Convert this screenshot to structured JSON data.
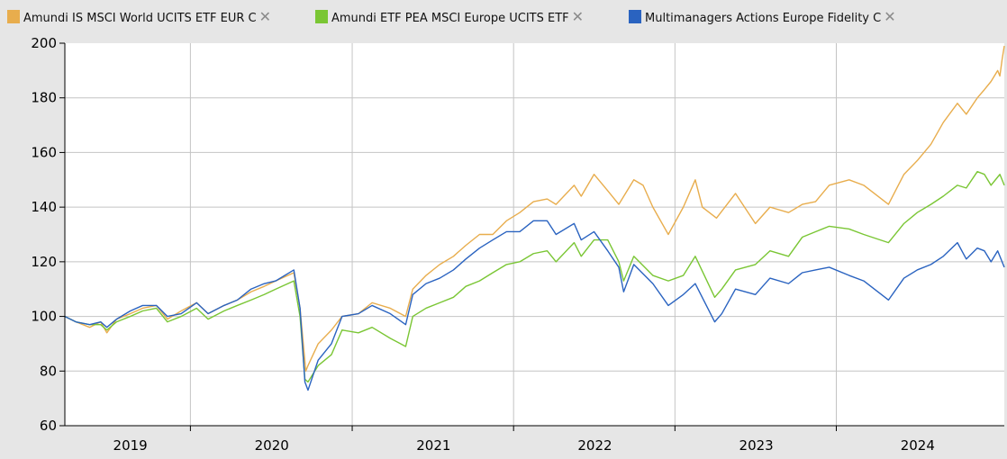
{
  "colors": {
    "background": "#e6e6e6",
    "plot_background": "#ffffff",
    "grid": "#c4c4c4",
    "series_world": "#e8ad4d",
    "series_europe_etf": "#7ac634",
    "series_fidelity": "#2a63c0"
  },
  "legend": {
    "items": [
      {
        "label": "Amundi IS MSCI World UCITS ETF EUR C",
        "color": "#e8ad4d",
        "remove_icon": "close-icon"
      },
      {
        "label": "Amundi ETF PEA MSCI Europe UCITS ETF",
        "color": "#7ac634",
        "remove_icon": "close-icon"
      },
      {
        "label": "Multimanagers Actions Europe Fidelity C",
        "color": "#2a63c0",
        "remove_icon": "close-icon"
      }
    ],
    "remove_glyph": "✕"
  },
  "chart_data": {
    "type": "line",
    "title": "",
    "xlabel": "",
    "ylabel": "",
    "xlim": [
      "2018-09-20",
      "2024-07-15"
    ],
    "ylim": [
      60,
      200
    ],
    "yticks": [
      60,
      80,
      100,
      120,
      140,
      160,
      180,
      200
    ],
    "xtick_positions": [
      "2019-07-01",
      "2020-07-01",
      "2021-07-01",
      "2022-07-01",
      "2023-07-01"
    ],
    "year_labels": [
      {
        "label": "2019",
        "x": "2019-02-15"
      },
      {
        "label": "2020",
        "x": "2020-01-01"
      },
      {
        "label": "2021",
        "x": "2021-01-01"
      },
      {
        "label": "2022",
        "x": "2022-01-01"
      },
      {
        "label": "2023",
        "x": "2023-01-01"
      },
      {
        "label": "2024",
        "x": "2024-01-01"
      }
    ],
    "grid": true,
    "legend_position": "top",
    "series": [
      {
        "name": "Amundi IS MSCI World UCITS ETF EUR C",
        "color": "#e8ad4d",
        "points": [
          [
            "2018-09-20",
            100
          ],
          [
            "2018-10-15",
            98
          ],
          [
            "2018-11-15",
            96
          ],
          [
            "2018-12-10",
            98
          ],
          [
            "2018-12-24",
            94
          ],
          [
            "2019-01-15",
            99
          ],
          [
            "2019-02-15",
            101
          ],
          [
            "2019-03-15",
            103
          ],
          [
            "2019-04-15",
            104
          ],
          [
            "2019-05-10",
            99
          ],
          [
            "2019-06-10",
            102
          ],
          [
            "2019-07-15",
            105
          ],
          [
            "2019-08-10",
            101
          ],
          [
            "2019-09-15",
            104
          ],
          [
            "2019-10-15",
            106
          ],
          [
            "2019-11-15",
            109
          ],
          [
            "2019-12-15",
            111
          ],
          [
            "2020-01-10",
            113
          ],
          [
            "2020-02-20",
            116
          ],
          [
            "2020-03-05",
            103
          ],
          [
            "2020-03-18",
            80
          ],
          [
            "2020-03-23",
            82
          ],
          [
            "2020-04-15",
            90
          ],
          [
            "2020-05-15",
            95
          ],
          [
            "2020-06-08",
            100
          ],
          [
            "2020-07-15",
            101
          ],
          [
            "2020-08-15",
            105
          ],
          [
            "2020-09-25",
            103
          ],
          [
            "2020-10-30",
            100
          ],
          [
            "2020-11-15",
            110
          ],
          [
            "2020-12-15",
            115
          ],
          [
            "2021-01-15",
            119
          ],
          [
            "2021-02-15",
            122
          ],
          [
            "2021-03-15",
            126
          ],
          [
            "2021-04-15",
            130
          ],
          [
            "2021-05-15",
            130
          ],
          [
            "2021-06-15",
            135
          ],
          [
            "2021-07-15",
            138
          ],
          [
            "2021-08-15",
            142
          ],
          [
            "2021-09-15",
            143
          ],
          [
            "2021-10-05",
            141
          ],
          [
            "2021-11-15",
            148
          ],
          [
            "2021-12-01",
            144
          ],
          [
            "2021-12-30",
            152
          ],
          [
            "2022-01-30",
            146
          ],
          [
            "2022-02-24",
            141
          ],
          [
            "2022-03-30",
            150
          ],
          [
            "2022-04-20",
            148
          ],
          [
            "2022-05-12",
            140
          ],
          [
            "2022-06-16",
            130
          ],
          [
            "2022-07-20",
            140
          ],
          [
            "2022-08-16",
            150
          ],
          [
            "2022-09-01",
            140
          ],
          [
            "2022-10-03",
            136
          ],
          [
            "2022-11-15",
            145
          ],
          [
            "2022-12-30",
            134
          ],
          [
            "2023-02-01",
            140
          ],
          [
            "2023-03-15",
            138
          ],
          [
            "2023-04-15",
            141
          ],
          [
            "2023-05-15",
            142
          ],
          [
            "2023-06-15",
            148
          ],
          [
            "2023-07-30",
            150
          ],
          [
            "2023-09-01",
            148
          ],
          [
            "2023-10-27",
            141
          ],
          [
            "2023-12-01",
            152
          ],
          [
            "2023-12-31",
            157
          ],
          [
            "2024-01-31",
            163
          ],
          [
            "2024-02-28",
            171
          ],
          [
            "2024-03-31",
            178
          ],
          [
            "2024-04-20",
            174
          ],
          [
            "2024-05-15",
            180
          ],
          [
            "2024-05-31",
            183
          ],
          [
            "2024-06-15",
            186
          ],
          [
            "2024-06-30",
            190
          ],
          [
            "2024-07-05",
            188
          ],
          [
            "2024-07-10",
            194
          ],
          [
            "2024-07-15",
            199
          ]
        ]
      },
      {
        "name": "Amundi ETF PEA MSCI Europe UCITS ETF",
        "color": "#7ac634",
        "points": [
          [
            "2018-09-20",
            100
          ],
          [
            "2018-10-15",
            98
          ],
          [
            "2018-11-15",
            97
          ],
          [
            "2018-12-10",
            97
          ],
          [
            "2018-12-24",
            95
          ],
          [
            "2019-01-15",
            98
          ],
          [
            "2019-02-15",
            100
          ],
          [
            "2019-03-15",
            102
          ],
          [
            "2019-04-15",
            103
          ],
          [
            "2019-05-10",
            98
          ],
          [
            "2019-06-10",
            100
          ],
          [
            "2019-07-15",
            103
          ],
          [
            "2019-08-10",
            99
          ],
          [
            "2019-09-15",
            102
          ],
          [
            "2019-10-15",
            104
          ],
          [
            "2019-11-15",
            106
          ],
          [
            "2019-12-15",
            108
          ],
          [
            "2020-01-10",
            110
          ],
          [
            "2020-02-20",
            113
          ],
          [
            "2020-03-05",
            100
          ],
          [
            "2020-03-16",
            77
          ],
          [
            "2020-03-23",
            76
          ],
          [
            "2020-04-15",
            82
          ],
          [
            "2020-05-15",
            86
          ],
          [
            "2020-06-08",
            95
          ],
          [
            "2020-07-15",
            94
          ],
          [
            "2020-08-15",
            96
          ],
          [
            "2020-09-25",
            92
          ],
          [
            "2020-10-30",
            89
          ],
          [
            "2020-11-15",
            100
          ],
          [
            "2020-12-15",
            103
          ],
          [
            "2021-01-15",
            105
          ],
          [
            "2021-02-15",
            107
          ],
          [
            "2021-03-15",
            111
          ],
          [
            "2021-04-15",
            113
          ],
          [
            "2021-05-15",
            116
          ],
          [
            "2021-06-15",
            119
          ],
          [
            "2021-07-15",
            120
          ],
          [
            "2021-08-15",
            123
          ],
          [
            "2021-09-15",
            124
          ],
          [
            "2021-10-05",
            120
          ],
          [
            "2021-11-15",
            127
          ],
          [
            "2021-12-01",
            122
          ],
          [
            "2021-12-30",
            128
          ],
          [
            "2022-01-30",
            128
          ],
          [
            "2022-02-24",
            120
          ],
          [
            "2022-03-07",
            113
          ],
          [
            "2022-03-30",
            122
          ],
          [
            "2022-05-12",
            115
          ],
          [
            "2022-06-16",
            113
          ],
          [
            "2022-07-20",
            115
          ],
          [
            "2022-08-16",
            122
          ],
          [
            "2022-09-29",
            107
          ],
          [
            "2022-10-15",
            110
          ],
          [
            "2022-11-15",
            117
          ],
          [
            "2022-12-30",
            119
          ],
          [
            "2023-02-01",
            124
          ],
          [
            "2023-03-15",
            122
          ],
          [
            "2023-04-15",
            129
          ],
          [
            "2023-05-15",
            131
          ],
          [
            "2023-06-15",
            133
          ],
          [
            "2023-07-30",
            132
          ],
          [
            "2023-09-01",
            130
          ],
          [
            "2023-10-27",
            127
          ],
          [
            "2023-12-01",
            134
          ],
          [
            "2023-12-31",
            138
          ],
          [
            "2024-01-31",
            141
          ],
          [
            "2024-02-28",
            144
          ],
          [
            "2024-03-31",
            148
          ],
          [
            "2024-04-20",
            147
          ],
          [
            "2024-05-15",
            153
          ],
          [
            "2024-05-31",
            152
          ],
          [
            "2024-06-15",
            148
          ],
          [
            "2024-06-30",
            151
          ],
          [
            "2024-07-05",
            152
          ],
          [
            "2024-07-10",
            150
          ],
          [
            "2024-07-15",
            148
          ]
        ]
      },
      {
        "name": "Multimanagers Actions Europe Fidelity C",
        "color": "#2a63c0",
        "points": [
          [
            "2018-09-20",
            100
          ],
          [
            "2018-10-15",
            98
          ],
          [
            "2018-11-15",
            97
          ],
          [
            "2018-12-10",
            98
          ],
          [
            "2018-12-24",
            96
          ],
          [
            "2019-01-15",
            99
          ],
          [
            "2019-02-15",
            102
          ],
          [
            "2019-03-15",
            104
          ],
          [
            "2019-04-15",
            104
          ],
          [
            "2019-05-10",
            100
          ],
          [
            "2019-06-10",
            101
          ],
          [
            "2019-07-15",
            105
          ],
          [
            "2019-08-10",
            101
          ],
          [
            "2019-09-15",
            104
          ],
          [
            "2019-10-15",
            106
          ],
          [
            "2019-11-15",
            110
          ],
          [
            "2019-12-15",
            112
          ],
          [
            "2020-01-10",
            113
          ],
          [
            "2020-02-20",
            117
          ],
          [
            "2020-03-05",
            103
          ],
          [
            "2020-03-16",
            76
          ],
          [
            "2020-03-23",
            73
          ],
          [
            "2020-04-15",
            84
          ],
          [
            "2020-05-15",
            90
          ],
          [
            "2020-06-08",
            100
          ],
          [
            "2020-07-15",
            101
          ],
          [
            "2020-08-15",
            104
          ],
          [
            "2020-09-25",
            101
          ],
          [
            "2020-10-30",
            97
          ],
          [
            "2020-11-15",
            108
          ],
          [
            "2020-12-15",
            112
          ],
          [
            "2021-01-15",
            114
          ],
          [
            "2021-02-15",
            117
          ],
          [
            "2021-03-15",
            121
          ],
          [
            "2021-04-15",
            125
          ],
          [
            "2021-05-15",
            128
          ],
          [
            "2021-06-15",
            131
          ],
          [
            "2021-07-15",
            131
          ],
          [
            "2021-08-15",
            135
          ],
          [
            "2021-09-15",
            135
          ],
          [
            "2021-10-05",
            130
          ],
          [
            "2021-11-15",
            134
          ],
          [
            "2021-12-01",
            128
          ],
          [
            "2021-12-30",
            131
          ],
          [
            "2022-01-30",
            124
          ],
          [
            "2022-02-24",
            118
          ],
          [
            "2022-03-07",
            109
          ],
          [
            "2022-03-30",
            119
          ],
          [
            "2022-05-12",
            112
          ],
          [
            "2022-06-16",
            104
          ],
          [
            "2022-07-20",
            108
          ],
          [
            "2022-08-16",
            112
          ],
          [
            "2022-09-29",
            98
          ],
          [
            "2022-10-15",
            101
          ],
          [
            "2022-11-15",
            110
          ],
          [
            "2022-12-30",
            108
          ],
          [
            "2023-02-01",
            114
          ],
          [
            "2023-03-15",
            112
          ],
          [
            "2023-04-15",
            116
          ],
          [
            "2023-05-15",
            117
          ],
          [
            "2023-06-15",
            118
          ],
          [
            "2023-07-30",
            115
          ],
          [
            "2023-09-01",
            113
          ],
          [
            "2023-10-27",
            106
          ],
          [
            "2023-12-01",
            114
          ],
          [
            "2023-12-31",
            117
          ],
          [
            "2024-01-31",
            119
          ],
          [
            "2024-02-28",
            122
          ],
          [
            "2024-03-31",
            127
          ],
          [
            "2024-04-20",
            121
          ],
          [
            "2024-05-15",
            125
          ],
          [
            "2024-05-31",
            124
          ],
          [
            "2024-06-15",
            120
          ],
          [
            "2024-06-30",
            124
          ],
          [
            "2024-07-05",
            122
          ],
          [
            "2024-07-10",
            120
          ],
          [
            "2024-07-15",
            118
          ]
        ]
      }
    ]
  }
}
